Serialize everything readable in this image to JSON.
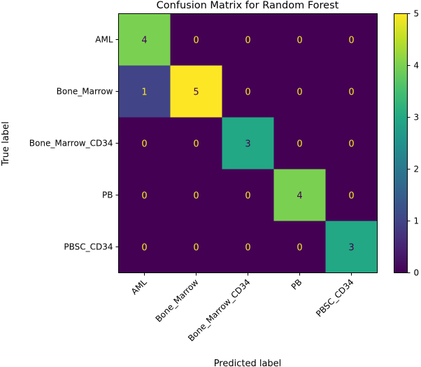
{
  "chart_data": {
    "type": "heatmap",
    "title": "Confusion Matrix for Random Forest",
    "xlabel": "Predicted label",
    "ylabel": "True label",
    "x_categories": [
      "AML",
      "Bone_Marrow",
      "Bone_Marrow_CD34",
      "PB",
      "PBSC_CD34"
    ],
    "y_categories": [
      "AML",
      "Bone_Marrow",
      "Bone_Marrow_CD34",
      "PB",
      "PBSC_CD34"
    ],
    "matrix": [
      [
        4,
        0,
        0,
        0,
        0
      ],
      [
        1,
        5,
        0,
        0,
        0
      ],
      [
        0,
        0,
        3,
        0,
        0
      ],
      [
        0,
        0,
        0,
        4,
        0
      ],
      [
        0,
        0,
        0,
        0,
        3
      ]
    ],
    "colormap": "viridis",
    "vmin": 0,
    "vmax": 5,
    "colorbar_ticks": [
      0,
      1,
      2,
      3,
      4,
      5
    ],
    "annotation_color_low": "#fde725",
    "annotation_color_high": "#440154",
    "grid": false
  }
}
